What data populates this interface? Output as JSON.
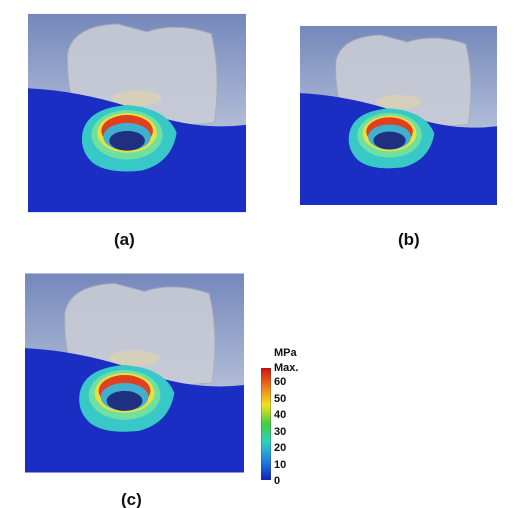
{
  "panels": [
    {
      "label": "(a)"
    },
    {
      "label": "(b)"
    },
    {
      "label": "(c)"
    }
  ],
  "legend": {
    "unit": "MPa",
    "max_label": "Max.",
    "ticks": [
      60,
      50,
      40,
      30,
      20,
      10,
      0
    ]
  }
}
